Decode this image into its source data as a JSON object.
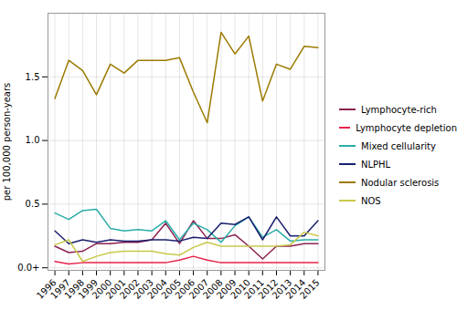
{
  "chart_data": {
    "type": "line",
    "ylabel": "per 100,000 person-years",
    "x": [
      1996,
      1997,
      1998,
      1999,
      2000,
      2001,
      2002,
      2003,
      2004,
      2005,
      2006,
      2007,
      2008,
      2009,
      2010,
      2011,
      2012,
      2013,
      2014,
      2015
    ],
    "series": [
      {
        "name": "Lymphocyte-rich",
        "color": "#8B2252",
        "values": [
          0.17,
          0.12,
          0.13,
          0.19,
          0.19,
          0.2,
          0.2,
          0.22,
          0.35,
          0.19,
          0.37,
          0.23,
          0.23,
          0.26,
          0.17,
          0.07,
          0.17,
          0.17,
          0.19,
          0.19
        ]
      },
      {
        "name": "Lymphocyte depletion",
        "color": "#E8214A",
        "values": [
          0.05,
          0.03,
          0.04,
          0.04,
          0.04,
          0.04,
          0.04,
          0.04,
          0.04,
          0.06,
          0.09,
          0.06,
          0.04,
          0.04,
          0.04,
          0.04,
          0.04,
          0.04,
          0.04,
          0.04
        ]
      },
      {
        "name": "Mixed cellularity",
        "color": "#2AADA8",
        "values": [
          0.43,
          0.38,
          0.45,
          0.46,
          0.31,
          0.29,
          0.3,
          0.29,
          0.37,
          0.22,
          0.35,
          0.3,
          0.2,
          0.33,
          0.4,
          0.24,
          0.3,
          0.21,
          0.22,
          0.22
        ]
      },
      {
        "name": "NLPHL",
        "color": "#1B1F6E",
        "values": [
          0.29,
          0.19,
          0.22,
          0.2,
          0.22,
          0.21,
          0.21,
          0.22,
          0.22,
          0.21,
          0.24,
          0.23,
          0.35,
          0.34,
          0.4,
          0.22,
          0.4,
          0.25,
          0.25,
          0.37
        ]
      },
      {
        "name": "Nodular sclerosis",
        "color": "#9C7A00",
        "values": [
          1.33,
          1.63,
          1.55,
          1.36,
          1.6,
          1.53,
          1.63,
          1.63,
          1.63,
          1.65,
          1.38,
          1.14,
          1.85,
          1.68,
          1.82,
          1.31,
          1.6,
          1.56,
          1.74,
          1.73
        ]
      },
      {
        "name": "NOS",
        "color": "#C8C84A",
        "values": [
          0.18,
          0.22,
          0.05,
          0.09,
          0.12,
          0.13,
          0.13,
          0.13,
          0.11,
          0.1,
          0.16,
          0.2,
          0.17,
          0.17,
          0.17,
          0.17,
          0.17,
          0.18,
          0.28,
          0.25
        ]
      }
    ],
    "xlim": [
      1995.5,
      2015.5
    ],
    "xticks": [
      1996,
      1997,
      1998,
      1999,
      2000,
      2001,
      2002,
      2003,
      2004,
      2005,
      2006,
      2007,
      2008,
      2009,
      2010,
      2011,
      2012,
      2013,
      2014,
      2015
    ],
    "ylim": [
      -0.02,
      2.0
    ],
    "yticks": [
      {
        "value": 0.0,
        "label": "0.0+"
      },
      0.5,
      {
        "value": 1.0,
        "label": "1.0"
      },
      1.5
    ],
    "grid": true,
    "legend": "right"
  }
}
